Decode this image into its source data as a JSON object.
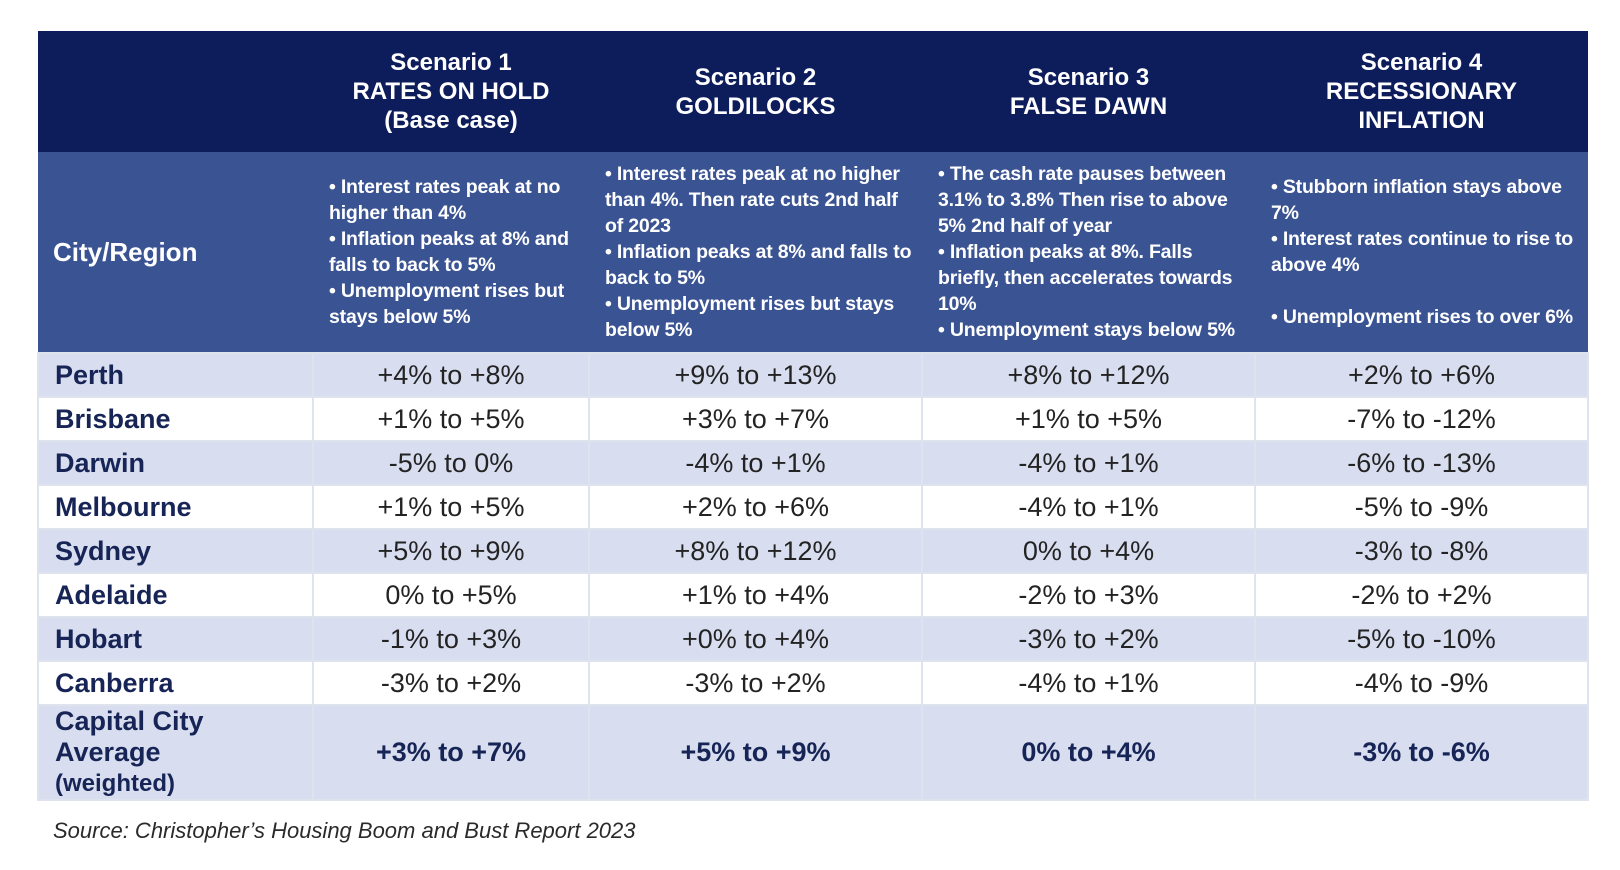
{
  "scenarios": [
    {
      "lines": [
        "Scenario 1",
        "RATES ON HOLD",
        "(Base case)"
      ],
      "bullets": [
        "• Interest rates peak at no higher than 4%",
        "• Inflation peaks at 8% and falls to back to 5%",
        "• Unemployment rises but stays below 5%"
      ]
    },
    {
      "lines": [
        "Scenario 2",
        "GOLDILOCKS"
      ],
      "bullets": [
        "• Interest rates peak at no higher than 4%. Then rate cuts 2nd half of 2023",
        "• Inflation peaks at 8% and falls to back to 5%",
        "• Unemployment rises but stays below 5%"
      ]
    },
    {
      "lines": [
        "Scenario 3",
        "FALSE DAWN"
      ],
      "bullets": [
        "• The cash rate pauses between 3.1% to 3.8% Then rise to above 5% 2nd half of year",
        "• Inflation peaks at 8%. Falls briefly, then accelerates towards 10%",
        "• Unemployment stays below 5%"
      ]
    },
    {
      "lines": [
        "Scenario 4",
        "RECESSIONARY",
        "INFLATION"
      ],
      "bullets": [
        "• Stubborn inflation stays above 7%",
        "• Interest rates continue to rise to above 4%",
        "• Unemployment rises to over 6%"
      ]
    }
  ],
  "region_header": "City/Region",
  "rows": [
    {
      "city": "Perth",
      "values": [
        "+4% to +8%",
        "+9% to +13%",
        "+8% to +12%",
        "+2% to +6%"
      ]
    },
    {
      "city": "Brisbane",
      "values": [
        "+1% to +5%",
        "+3% to +7%",
        "+1% to +5%",
        "-7% to -12%"
      ]
    },
    {
      "city": "Darwin",
      "values": [
        "-5% to 0%",
        "-4% to +1%",
        "-4% to +1%",
        "-6% to -13%"
      ]
    },
    {
      "city": "Melbourne",
      "values": [
        "+1% to +5%",
        "+2% to +6%",
        "-4% to +1%",
        "-5% to -9%"
      ]
    },
    {
      "city": "Sydney",
      "values": [
        "+5% to +9%",
        "+8% to +12%",
        "0% to +4%",
        "-3% to -8%"
      ]
    },
    {
      "city": "Adelaide",
      "values": [
        "0% to +5%",
        "+1% to +4%",
        "-2% to +3%",
        "-2% to +2%"
      ]
    },
    {
      "city": "Hobart",
      "values": [
        "-1% to +3%",
        "+0% to +4%",
        "-3% to +2%",
        "-5% to -10%"
      ]
    },
    {
      "city": "Canberra",
      "values": [
        "-3% to +2%",
        "-3% to +2%",
        "-4% to +1%",
        "-4% to -9%"
      ]
    }
  ],
  "average": {
    "label": [
      "Capital City",
      "Average",
      "(weighted)"
    ],
    "values": [
      "+3% to +7%",
      "+5% to +9%",
      "0% to +4%",
      "-3% to -6%"
    ]
  },
  "source": "Source: Christopher’s Housing Boom and Bust Report 2023"
}
